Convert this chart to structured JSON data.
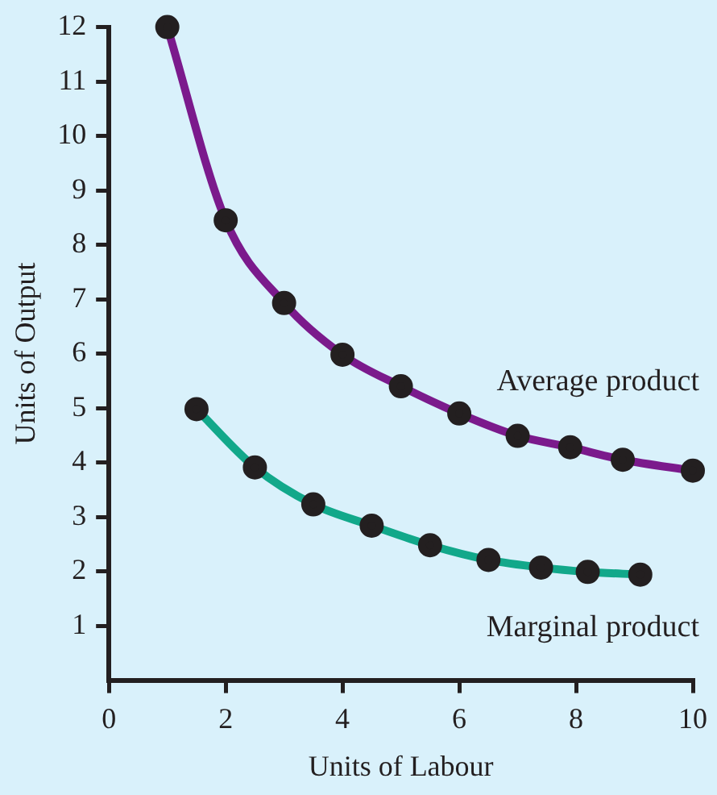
{
  "chart_data": {
    "type": "line",
    "xlabel": "Units of Labour",
    "ylabel": "Units of Output",
    "xlim": [
      0,
      10
    ],
    "xticks": [
      0,
      2,
      4,
      6,
      8,
      10
    ],
    "ylim": [
      0,
      12
    ],
    "yticks": [
      1,
      2,
      3,
      4,
      5,
      6,
      7,
      8,
      9,
      10,
      11,
      12
    ],
    "grid": false,
    "legend": false,
    "marker": "circle",
    "line_style": "solid",
    "series": [
      {
        "name": "Average product",
        "color": "#7b1a8c",
        "x": [
          1,
          2,
          3,
          4,
          5,
          6,
          7,
          7.9,
          8.8,
          10
        ],
        "values": [
          12,
          8.45,
          6.93,
          5.98,
          5.4,
          4.9,
          4.49,
          4.28,
          4.05,
          3.85
        ]
      },
      {
        "name": "Marginal product",
        "color": "#12a88a",
        "x": [
          1.5,
          2.5,
          3.5,
          4.5,
          5.5,
          6.5,
          7.4,
          8.2,
          9.1
        ],
        "values": [
          4.98,
          3.91,
          3.23,
          2.84,
          2.48,
          2.21,
          2.07,
          1.99,
          1.94
        ]
      }
    ]
  }
}
